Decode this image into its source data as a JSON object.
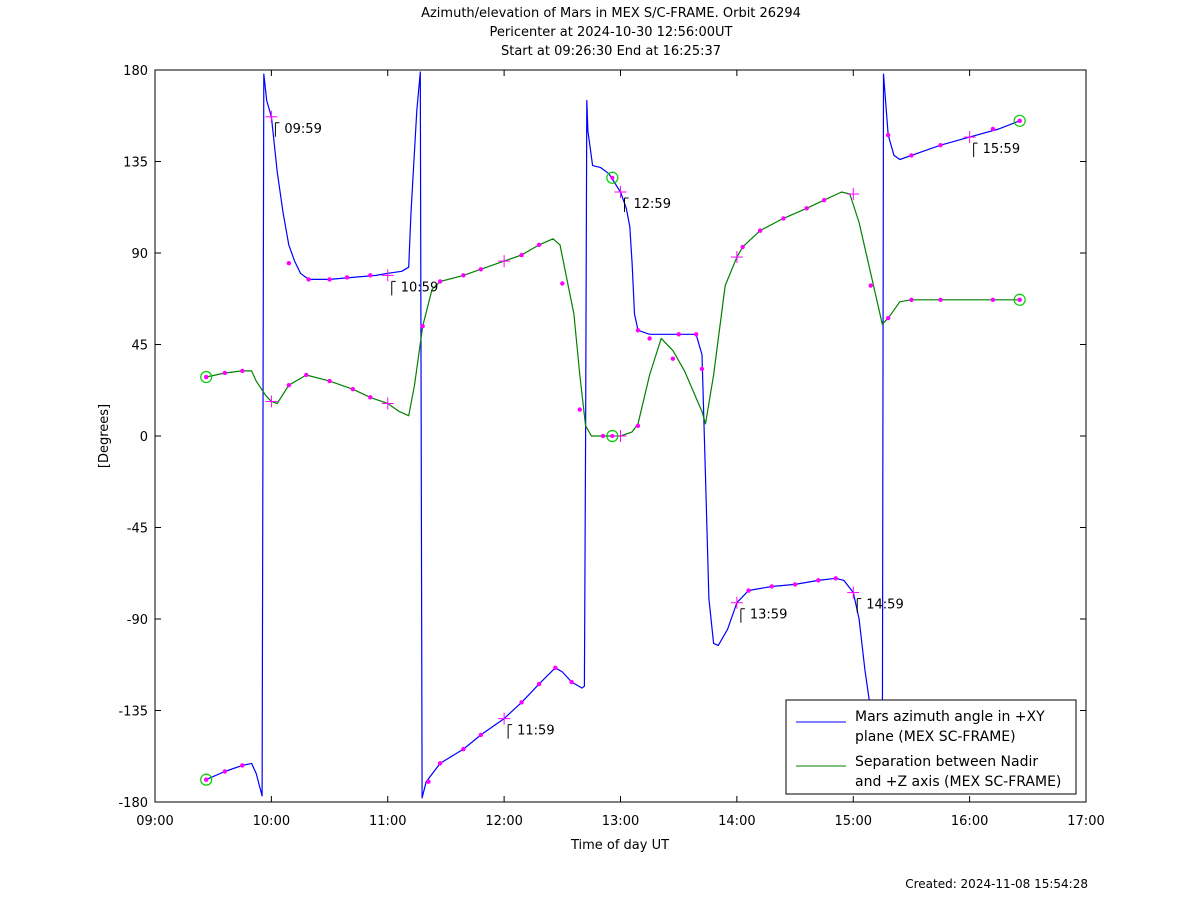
{
  "chart_data": {
    "type": "line",
    "title": "Azimuth/elevation of Mars in MEX S/C-FRAME.  Orbit 26294",
    "subtitle_lines": [
      "Pericenter at 2024-10-30 12:56:00UT",
      "Start at 09:26:30 End at 16:25:37"
    ],
    "xlabel": "Time of day UT",
    "ylabel": "[Degrees]",
    "xlim": [
      9.0,
      17.0
    ],
    "ylim": [
      -180,
      180
    ],
    "x_ticks": [
      {
        "v": 9,
        "label": "09:00"
      },
      {
        "v": 10,
        "label": "10:00"
      },
      {
        "v": 11,
        "label": "11:00"
      },
      {
        "v": 12,
        "label": "12:00"
      },
      {
        "v": 13,
        "label": "13:00"
      },
      {
        "v": 14,
        "label": "14:00"
      },
      {
        "v": 15,
        "label": "15:00"
      },
      {
        "v": 16,
        "label": "16:00"
      },
      {
        "v": 17,
        "label": "17:00"
      }
    ],
    "y_ticks": [
      {
        "v": 180,
        "label": "180"
      },
      {
        "v": 135,
        "label": "135"
      },
      {
        "v": 90,
        "label": "90"
      },
      {
        "v": 45,
        "label": "45"
      },
      {
        "v": 0,
        "label": "0"
      },
      {
        "v": -45,
        "label": "-45"
      },
      {
        "v": -90,
        "label": "-90"
      },
      {
        "v": -135,
        "label": "-135"
      },
      {
        "v": -180,
        "label": "-180"
      }
    ],
    "legend_position": "bottom-right",
    "series": [
      {
        "name": "Mars azimuth angle in +XY plane (MEX SC-FRAME)",
        "legend_lines": [
          "Mars azimuth angle in +XY",
          "plane (MEX SC-FRAME)"
        ],
        "color": "#0000ff",
        "points": [
          [
            9.44,
            -169
          ],
          [
            9.6,
            -165
          ],
          [
            9.75,
            -162
          ],
          [
            9.83,
            -161
          ],
          [
            9.87,
            -166
          ],
          [
            9.92,
            -177
          ],
          [
            9.935,
            178
          ],
          [
            9.96,
            165
          ],
          [
            10.0,
            157
          ],
          [
            10.05,
            130
          ],
          [
            10.1,
            110
          ],
          [
            10.15,
            94
          ],
          [
            10.2,
            86
          ],
          [
            10.25,
            80
          ],
          [
            10.32,
            77
          ],
          [
            10.5,
            77
          ],
          [
            10.7,
            78
          ],
          [
            10.9,
            79
          ],
          [
            11.0,
            80
          ],
          [
            11.12,
            81
          ],
          [
            11.18,
            83
          ],
          [
            11.2,
            110
          ],
          [
            11.25,
            160
          ],
          [
            11.28,
            179
          ],
          [
            11.295,
            -178
          ],
          [
            11.33,
            -170
          ],
          [
            11.45,
            -161
          ],
          [
            11.65,
            -154
          ],
          [
            11.8,
            -147
          ],
          [
            12.0,
            -139
          ],
          [
            12.15,
            -131
          ],
          [
            12.3,
            -122
          ],
          [
            12.44,
            -114
          ],
          [
            12.5,
            -116
          ],
          [
            12.58,
            -121
          ],
          [
            12.67,
            -124
          ],
          [
            12.69,
            -123
          ],
          [
            12.7,
            0
          ],
          [
            12.71,
            165
          ],
          [
            12.72,
            150
          ],
          [
            12.76,
            133
          ],
          [
            12.83,
            132
          ],
          [
            12.9,
            129
          ],
          [
            13.0,
            120
          ],
          [
            13.05,
            112
          ],
          [
            13.08,
            103
          ],
          [
            13.1,
            85
          ],
          [
            13.12,
            60
          ],
          [
            13.15,
            52
          ],
          [
            13.25,
            50
          ],
          [
            13.5,
            50
          ],
          [
            13.65,
            50
          ],
          [
            13.7,
            40
          ],
          [
            13.73,
            -20
          ],
          [
            13.76,
            -80
          ],
          [
            13.8,
            -102
          ],
          [
            13.84,
            -103
          ],
          [
            13.92,
            -95
          ],
          [
            14.0,
            -82
          ],
          [
            14.1,
            -76
          ],
          [
            14.3,
            -74
          ],
          [
            14.5,
            -73
          ],
          [
            14.7,
            -71
          ],
          [
            14.85,
            -70
          ],
          [
            14.92,
            -71
          ],
          [
            15.0,
            -77
          ],
          [
            15.05,
            -90
          ],
          [
            15.1,
            -115
          ],
          [
            15.15,
            -135
          ],
          [
            15.2,
            -160
          ],
          [
            15.25,
            -175
          ],
          [
            15.26,
            178
          ],
          [
            15.3,
            148
          ],
          [
            15.35,
            138
          ],
          [
            15.4,
            136
          ],
          [
            15.5,
            138
          ],
          [
            15.75,
            143
          ],
          [
            16.0,
            147
          ],
          [
            16.25,
            151
          ],
          [
            16.43,
            155
          ]
        ]
      },
      {
        "name": "Separation between Nadir and +Z axis (MEX SC-FRAME)",
        "legend_lines": [
          "Separation between Nadir",
          "and +Z axis (MEX SC-FRAME)"
        ],
        "color": "#008000",
        "points": [
          [
            9.44,
            29
          ],
          [
            9.6,
            31
          ],
          [
            9.75,
            32
          ],
          [
            9.83,
            32
          ],
          [
            9.87,
            27
          ],
          [
            9.95,
            20
          ],
          [
            10.0,
            17
          ],
          [
            10.05,
            16
          ],
          [
            10.15,
            25
          ],
          [
            10.3,
            30
          ],
          [
            10.5,
            27
          ],
          [
            10.7,
            23
          ],
          [
            10.85,
            19
          ],
          [
            11.0,
            16
          ],
          [
            11.1,
            12
          ],
          [
            11.18,
            10
          ],
          [
            11.23,
            25
          ],
          [
            11.3,
            54
          ],
          [
            11.38,
            72
          ],
          [
            11.45,
            76
          ],
          [
            11.65,
            79
          ],
          [
            11.85,
            83
          ],
          [
            12.0,
            86
          ],
          [
            12.15,
            89
          ],
          [
            12.3,
            94
          ],
          [
            12.42,
            97
          ],
          [
            12.48,
            94
          ],
          [
            12.6,
            60
          ],
          [
            12.65,
            30
          ],
          [
            12.7,
            5
          ],
          [
            12.75,
            0
          ],
          [
            12.85,
            0
          ],
          [
            13.0,
            0
          ],
          [
            13.1,
            2
          ],
          [
            13.15,
            6
          ],
          [
            13.25,
            30
          ],
          [
            13.35,
            48
          ],
          [
            13.45,
            42
          ],
          [
            13.55,
            32
          ],
          [
            13.7,
            12
          ],
          [
            13.73,
            6
          ],
          [
            13.8,
            30
          ],
          [
            13.9,
            74
          ],
          [
            14.0,
            88
          ],
          [
            14.05,
            93
          ],
          [
            14.2,
            101
          ],
          [
            14.4,
            107
          ],
          [
            14.6,
            112
          ],
          [
            14.75,
            116
          ],
          [
            14.9,
            120
          ],
          [
            14.97,
            119
          ],
          [
            15.05,
            105
          ],
          [
            15.15,
            80
          ],
          [
            15.25,
            55
          ],
          [
            15.3,
            58
          ],
          [
            15.4,
            66
          ],
          [
            15.5,
            67
          ],
          [
            15.75,
            67
          ],
          [
            16.0,
            67
          ],
          [
            16.25,
            67
          ],
          [
            16.43,
            67
          ]
        ]
      }
    ],
    "sample_markers": [
      [
        9.44,
        -169
      ],
      [
        9.6,
        -165
      ],
      [
        9.75,
        -162
      ],
      [
        10.15,
        85
      ],
      [
        10.32,
        77
      ],
      [
        10.5,
        77
      ],
      [
        10.65,
        78
      ],
      [
        10.85,
        79
      ],
      [
        11.35,
        -170
      ],
      [
        11.45,
        -161
      ],
      [
        11.65,
        -154
      ],
      [
        11.8,
        -147
      ],
      [
        12.15,
        -131
      ],
      [
        12.3,
        -122
      ],
      [
        12.44,
        -114
      ],
      [
        12.58,
        -121
      ],
      [
        13.15,
        52
      ],
      [
        13.5,
        50
      ],
      [
        13.65,
        50
      ],
      [
        14.1,
        -76
      ],
      [
        14.3,
        -74
      ],
      [
        14.5,
        -73
      ],
      [
        14.7,
        -71
      ],
      [
        14.85,
        -70
      ],
      [
        15.3,
        148
      ],
      [
        15.5,
        138
      ],
      [
        15.75,
        143
      ],
      [
        16.2,
        151
      ],
      [
        16.43,
        155
      ],
      [
        9.44,
        29
      ],
      [
        9.6,
        31
      ],
      [
        9.75,
        32
      ],
      [
        10.15,
        25
      ],
      [
        10.3,
        30
      ],
      [
        10.5,
        27
      ],
      [
        10.7,
        23
      ],
      [
        10.85,
        19
      ],
      [
        11.3,
        54
      ],
      [
        11.45,
        76
      ],
      [
        11.65,
        79
      ],
      [
        11.8,
        82
      ],
      [
        12.15,
        89
      ],
      [
        12.3,
        94
      ],
      [
        12.5,
        75
      ],
      [
        12.65,
        13
      ],
      [
        12.85,
        0
      ],
      [
        13.15,
        5
      ],
      [
        13.25,
        48
      ],
      [
        13.45,
        38
      ],
      [
        13.7,
        33
      ],
      [
        14.05,
        93
      ],
      [
        14.2,
        101
      ],
      [
        14.4,
        107
      ],
      [
        14.6,
        112
      ],
      [
        14.75,
        116
      ],
      [
        15.15,
        74
      ],
      [
        15.3,
        58
      ],
      [
        15.5,
        67
      ],
      [
        15.75,
        67
      ],
      [
        16.2,
        67
      ],
      [
        16.43,
        67
      ]
    ],
    "hour_markers": [
      [
        10.0,
        157
      ],
      [
        11.0,
        79
      ],
      [
        12.0,
        -139
      ],
      [
        13.0,
        120
      ],
      [
        14.0,
        -82
      ],
      [
        15.0,
        -77
      ],
      [
        16.0,
        147
      ],
      [
        10.0,
        17
      ],
      [
        11.0,
        16
      ],
      [
        12.0,
        86
      ],
      [
        13.0,
        0
      ],
      [
        14.0,
        88
      ],
      [
        15.0,
        119
      ]
    ],
    "circle_markers": [
      [
        9.44,
        -169
      ],
      [
        9.44,
        29
      ],
      [
        12.93,
        127
      ],
      [
        12.93,
        0
      ],
      [
        16.43,
        155
      ],
      [
        16.43,
        67
      ]
    ],
    "marker_colors": {
      "sample": "#ff00ff",
      "hour": "#ff00ff",
      "circle": "#00cc00"
    },
    "annotations": [
      {
        "x": 10.0,
        "y": 157,
        "label": "09:59"
      },
      {
        "x": 11.0,
        "y": 79,
        "label": "10:59"
      },
      {
        "x": 12.0,
        "y": -139,
        "label": "11:59"
      },
      {
        "x": 13.0,
        "y": 120,
        "label": "12:59"
      },
      {
        "x": 14.0,
        "y": -82,
        "label": "13:59"
      },
      {
        "x": 15.0,
        "y": -77,
        "label": "14:59"
      },
      {
        "x": 16.0,
        "y": 147,
        "label": "15:59"
      }
    ]
  },
  "footer": {
    "created": "Created: 2024-11-08 15:54:28"
  }
}
